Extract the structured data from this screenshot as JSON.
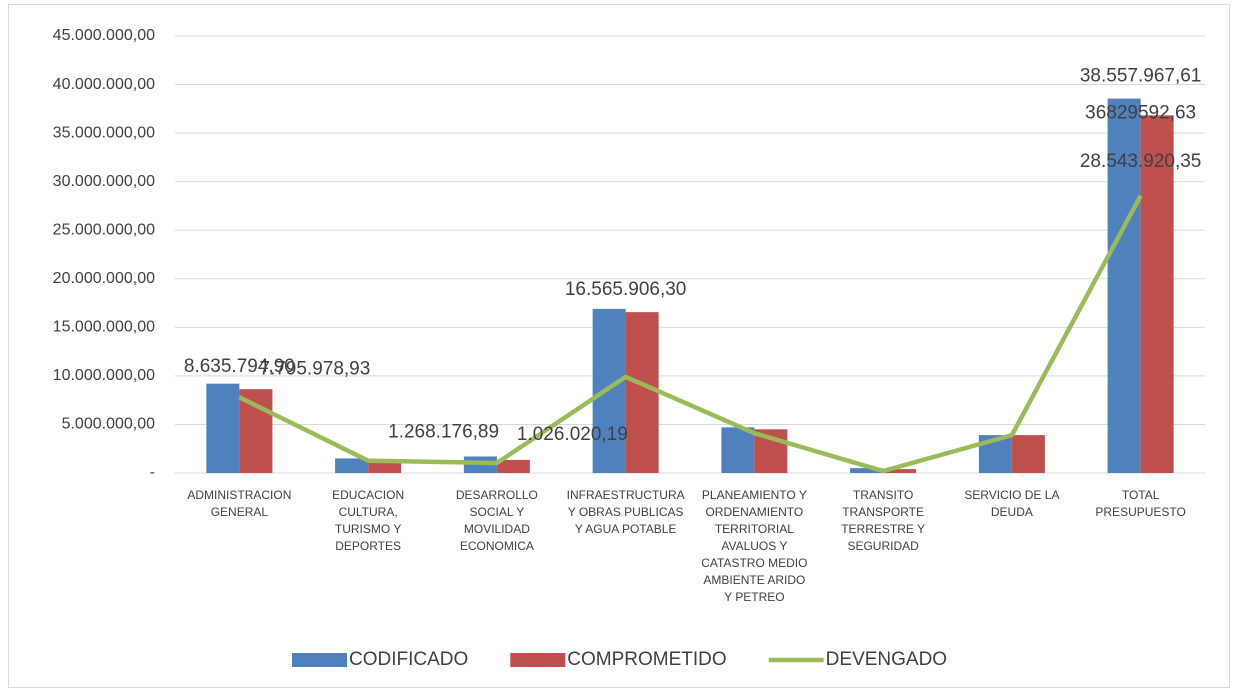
{
  "chart_data": {
    "type": "bar",
    "categories": [
      "ADMINISTRACION\nGENERAL",
      "EDUCACION\nCULTURA,\nTURISMO  Y\nDEPORTES",
      "DESARROLLO\nSOCIAL Y\nMOVILIDAD\nECONOMICA",
      "INFRAESTRUCTURA\nY  OBRAS PUBLICAS\nY AGUA POTABLE",
      "PLANEAMIENTO Y\nORDENAMIENTO\nTERRITORIAL\nAVALUOS Y\nCATASTRO MEDIO\nAMBIENTE  ARIDO\nY PETREO",
      "TRANSITO\nTRANSPORTE\nTERRESTRE Y\nSEGURIDAD",
      "SERVICIO DE LA\nDEUDA",
      "TOTAL\nPRESUPUESTO"
    ],
    "series": [
      {
        "name": "CODIFICADO",
        "type": "bar",
        "color": "#4f81bd",
        "values": [
          9200000,
          1500000,
          1700000,
          16900000,
          4700000,
          500000,
          3900000,
          38557967.61
        ],
        "value_labels": [
          null,
          null,
          null,
          null,
          null,
          null,
          null,
          "38.557.967,61"
        ]
      },
      {
        "name": "COMPROMETIDO",
        "type": "bar",
        "color": "#c0504d",
        "values": [
          8635794.9,
          1400000,
          1350000,
          16565906.3,
          4500000,
          400000,
          3900000,
          36829592.63
        ],
        "value_labels": [
          "8.635.794,90",
          null,
          null,
          "16.565.906,30",
          null,
          null,
          null,
          "36829592,63"
        ]
      },
      {
        "name": "DEVENGADO",
        "type": "line",
        "color": "#9bbb59",
        "values": [
          7795978.93,
          1268176.89,
          1026020.19,
          9900000,
          4100000,
          200000,
          3900000,
          28543920.35
        ],
        "value_labels": [
          "7.795.978,93",
          "1.268.176,89",
          "1.026.020,19",
          null,
          null,
          null,
          null,
          "28.543.920,35"
        ]
      }
    ],
    "ylim": [
      0,
      45000000
    ],
    "yticks": [
      {
        "value": 0,
        "label": "-"
      },
      {
        "value": 5000000,
        "label": "5.000.000,00"
      },
      {
        "value": 10000000,
        "label": "10.000.000,00"
      },
      {
        "value": 15000000,
        "label": "15.000.000,00"
      },
      {
        "value": 20000000,
        "label": "20.000.000,00"
      },
      {
        "value": 25000000,
        "label": "25.000.000,00"
      },
      {
        "value": 30000000,
        "label": "30.000.000,00"
      },
      {
        "value": 35000000,
        "label": "35.000.000,00"
      },
      {
        "value": 40000000,
        "label": "40.000.000,00"
      },
      {
        "value": 45000000,
        "label": "45.000.000,00"
      }
    ],
    "grid": true,
    "legend": "bottom"
  }
}
